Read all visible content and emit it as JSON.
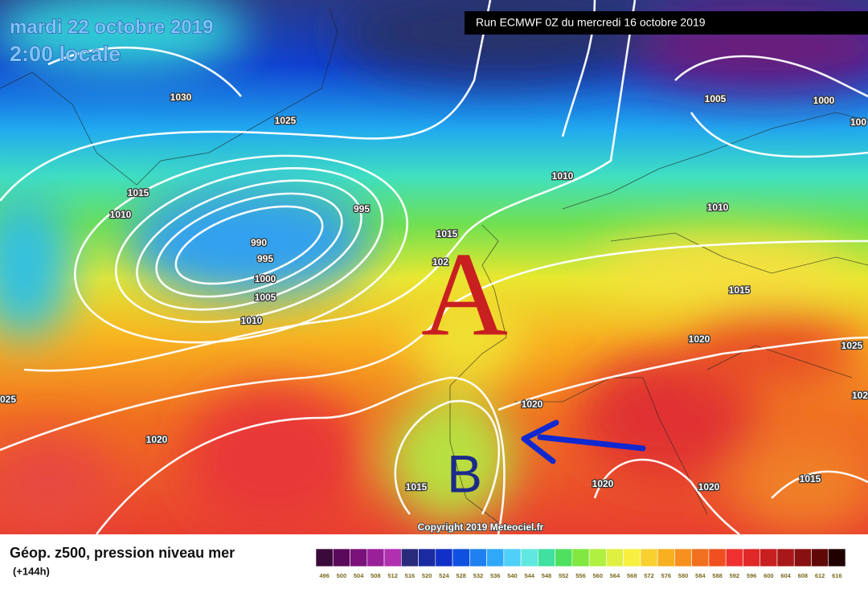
{
  "header": {
    "date": "mardi 22 octobre 2019",
    "time": "2:00 locale",
    "run": "Run ECMWF 0Z du mercredi 16 octobre 2019"
  },
  "isobar_labels": [
    "1030",
    "1025",
    "1015",
    "1010",
    "995",
    "990",
    "995",
    "1000",
    "1005",
    "1010",
    "1015",
    "102",
    "1010",
    "1005",
    "1000",
    "100",
    "1010",
    "1015",
    "1020",
    "1025",
    "102",
    "025",
    "1020",
    "1020",
    "1015",
    "1020",
    "1020",
    "1015"
  ],
  "markers": {
    "high": "A",
    "low": "B"
  },
  "copyright": "Copyright 2019 Meteociel.fr",
  "footer": {
    "title": "Géop. z500, pression niveau mer",
    "lead": "(+144h)"
  },
  "scale": {
    "labels": [
      496,
      500,
      504,
      508,
      512,
      516,
      520,
      524,
      528,
      532,
      536,
      540,
      544,
      548,
      552,
      556,
      560,
      564,
      568,
      572,
      576,
      580,
      584,
      588,
      592,
      596,
      600,
      604,
      608,
      612,
      616
    ],
    "colors": [
      "#3a0a3a",
      "#5a0a5a",
      "#7a107a",
      "#9a209a",
      "#b030b0",
      "#2a2a7a",
      "#1a2aa0",
      "#1030c8",
      "#1050e0",
      "#2080f0",
      "#30a8f8",
      "#50d0f8",
      "#60e8e0",
      "#40e0a0",
      "#50e060",
      "#80e840",
      "#b0f040",
      "#e0f040",
      "#f8f040",
      "#f8d030",
      "#f8b020",
      "#f89020",
      "#f07020",
      "#f05020",
      "#f03030",
      "#e02828",
      "#c82020",
      "#a81818",
      "#881010",
      "#600808",
      "#200000"
    ]
  }
}
